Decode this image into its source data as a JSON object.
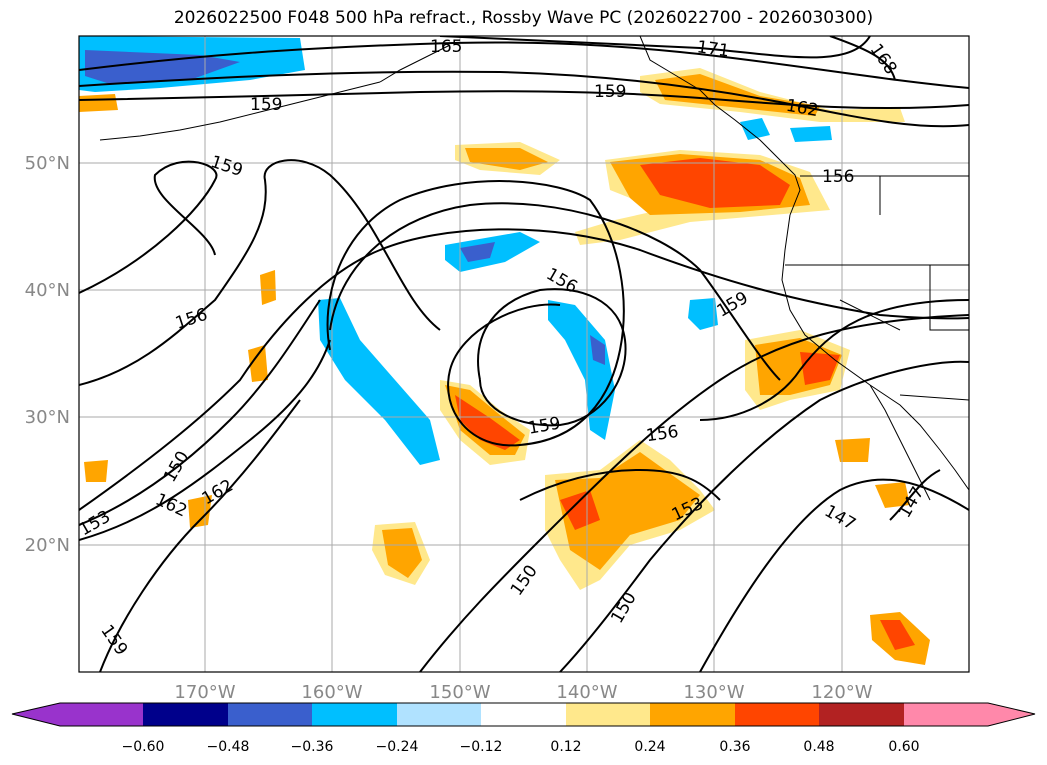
{
  "title": "2026022500 F048 500 hPa refract., Rossby Wave PC (2026022700 - 2026030300)",
  "lat_labels": [
    "50°N",
    "40°N",
    "30°N",
    "20°N"
  ],
  "lon_labels": [
    "170°W",
    "160°W",
    "150°W",
    "140°W",
    "130°W",
    "120°W"
  ],
  "contour_labels": [
    "165",
    "171",
    "168",
    "159",
    "159",
    "162",
    "159",
    "156",
    "156",
    "156",
    "159",
    "159",
    "156",
    "150",
    "162",
    "162",
    "153",
    "153",
    "147",
    "147",
    "150",
    "150",
    "159"
  ],
  "colorbar": {
    "tick_labels": [
      "−0.60",
      "−0.48",
      "−0.36",
      "−0.24",
      "−0.12",
      "0.12",
      "0.24",
      "0.36",
      "0.48",
      "0.60"
    ],
    "colors": [
      "#9933cc",
      "#00008b",
      "#3a5fcd",
      "#00bfff",
      "#b0e2ff",
      "#ffffff",
      "#ffe88c",
      "#ffa500",
      "#ff4500",
      "#b22222",
      "#ff88aa"
    ]
  }
}
